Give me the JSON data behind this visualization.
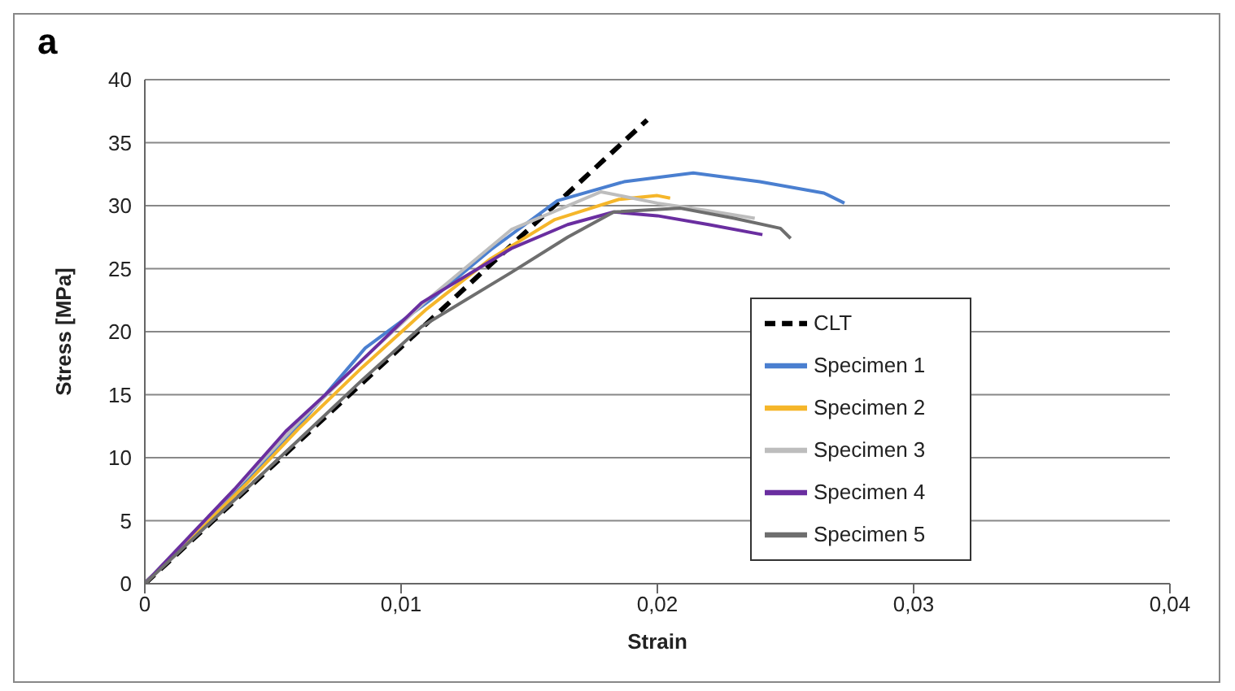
{
  "chart_data": {
    "type": "line",
    "title": "a",
    "xlabel": "Strain",
    "ylabel": "Stress [MPa]",
    "xlim": [
      0,
      0.04
    ],
    "xticks": [
      0,
      {
        "value": 0.01,
        "label": "0,01"
      },
      {
        "value": 0.02,
        "label": "0,02"
      },
      {
        "value": 0.03,
        "label": "0,03"
      },
      {
        "value": 0.04,
        "label": "0,04"
      }
    ],
    "ylim": [
      0,
      40
    ],
    "yticks": [
      0,
      5,
      10,
      15,
      20,
      25,
      30,
      35,
      40
    ],
    "grid": "y",
    "legend": "bottom right",
    "marker": "none",
    "series": [
      {
        "name": "CLT",
        "color": "#000000",
        "line_style": "dashed",
        "x": [
          0,
          0.0196
        ],
        "values": [
          0,
          36.8
        ]
      },
      {
        "name": "Specimen 1",
        "color": "#4a7fd0",
        "x": [
          0,
          0.002,
          0.004,
          0.0062,
          0.0086,
          0.0112,
          0.0135,
          0.0161,
          0.0187,
          0.0214,
          0.024,
          0.0265,
          0.0273
        ],
        "values": [
          0,
          4.2,
          8.3,
          13,
          18.7,
          22.6,
          26.5,
          30.4,
          31.9,
          32.6,
          31.9,
          31,
          30.2
        ]
      },
      {
        "name": "Specimen 2",
        "color": "#f5b62a",
        "x": [
          0,
          0.002,
          0.004,
          0.006,
          0.0085,
          0.011,
          0.0135,
          0.016,
          0.0185,
          0.02,
          0.0205
        ],
        "values": [
          0,
          4,
          8,
          12.3,
          17.2,
          21.8,
          25.8,
          28.9,
          30.5,
          30.8,
          30.6
        ]
      },
      {
        "name": "Specimen 3",
        "color": "#bdbdbd",
        "x": [
          0,
          0.002,
          0.004,
          0.006,
          0.0085,
          0.011,
          0.0143,
          0.0178,
          0.02,
          0.022,
          0.0238
        ],
        "values": [
          0,
          4.3,
          8.5,
          12.8,
          17.8,
          22.5,
          28.1,
          31.1,
          30.2,
          29.6,
          29
        ]
      },
      {
        "name": "Specimen 4",
        "color": "#6a2ea0",
        "x": [
          0,
          0.002,
          0.0035,
          0.0055,
          0.008,
          0.0108,
          0.0143,
          0.0165,
          0.0183,
          0.02,
          0.022,
          0.0241
        ],
        "values": [
          0,
          4.3,
          7.5,
          12.1,
          16.8,
          22.3,
          26.6,
          28.5,
          29.5,
          29.2,
          28.5,
          27.7
        ]
      },
      {
        "name": "Specimen 5",
        "color": "#6e6e6e",
        "x": [
          0,
          0.002,
          0.004,
          0.006,
          0.0085,
          0.0108,
          0.0143,
          0.0165,
          0.0183,
          0.0209,
          0.023,
          0.0248,
          0.0252
        ],
        "values": [
          0,
          3.8,
          7.6,
          11.4,
          16.2,
          20.4,
          24.7,
          27.5,
          29.5,
          29.8,
          29,
          28.2,
          27.4
        ]
      }
    ]
  }
}
